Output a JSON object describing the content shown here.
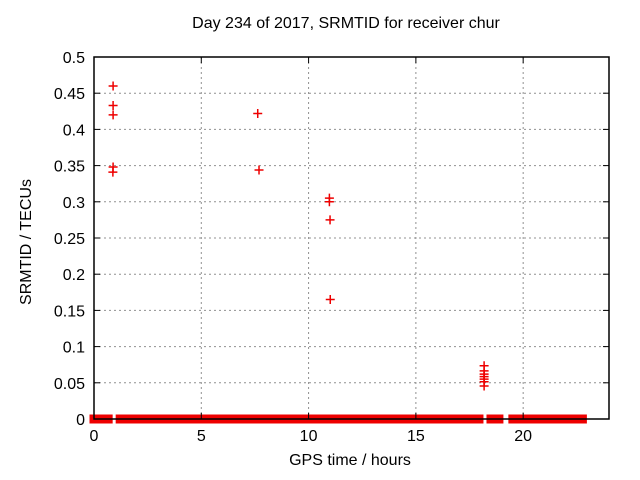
{
  "chart_data": {
    "type": "scatter",
    "title": "Day 234 of 2017, SRMTID for receiver chur",
    "xlabel": "GPS time / hours",
    "ylabel": "SRMTID / TECUs",
    "xlim": [
      0,
      24
    ],
    "ylim": [
      0,
      0.5
    ],
    "xticks": {
      "values": [
        0,
        5,
        10,
        15,
        20
      ],
      "labels": [
        "0",
        "5",
        "10",
        "15",
        "20"
      ]
    },
    "yticks": {
      "values": [
        0,
        0.05,
        0.1,
        0.15,
        0.2,
        0.25,
        0.3,
        0.35,
        0.4,
        0.45,
        0.5
      ],
      "labels": [
        "0",
        "0.05",
        "0.1",
        "0.15",
        "0.2",
        "0.25",
        "0.3",
        "0.35",
        "0.4",
        "0.45",
        "0.5"
      ]
    },
    "grid": "dotted",
    "legend": false,
    "marker": "plus",
    "marker_color": "#ee0000",
    "grid_color": "#909090",
    "border_color": "#000000",
    "series": [
      {
        "name": "SRMTID",
        "points": [
          [
            0.89,
            0.46
          ],
          [
            0.89,
            0.433
          ],
          [
            0.89,
            0.42
          ],
          [
            0.89,
            0.348
          ],
          [
            0.88,
            0.341
          ],
          [
            7.63,
            0.422
          ],
          [
            7.69,
            0.344
          ],
          [
            10.97,
            0.305
          ],
          [
            10.97,
            0.3
          ],
          [
            11.0,
            0.275
          ],
          [
            11.01,
            0.165
          ],
          [
            18.18,
            0.0735
          ],
          [
            18.18,
            0.0665
          ],
          [
            18.18,
            0.062
          ],
          [
            18.18,
            0.0585
          ],
          [
            18.18,
            0.055
          ],
          [
            18.18,
            0.0515
          ],
          [
            18.18,
            0.0455
          ]
        ]
      }
    ],
    "baseline_value": 0,
    "baseline_segments": [
      [
        0.0,
        0.66
      ],
      [
        1.22,
        17.94
      ],
      [
        18.5,
        18.87
      ],
      [
        19.52,
        22.76
      ]
    ]
  }
}
